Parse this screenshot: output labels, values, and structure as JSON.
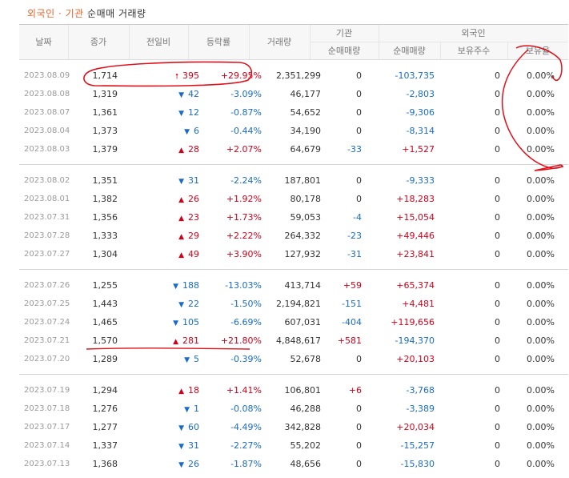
{
  "title": {
    "part1": "외국인",
    "dot": "·",
    "part2": "기관",
    "part3": "순매매 거래량"
  },
  "columns": {
    "date": "날짜",
    "close": "종가",
    "change": "전일비",
    "rate": "등락률",
    "volume": "거래량",
    "institution_group": "기관",
    "institution_net": "순매매량",
    "foreign_group": "외국인",
    "foreign_net": "순매매량",
    "foreign_holdings": "보유주수",
    "foreign_ratio": "보유율"
  },
  "colors": {
    "up": "#d0021b",
    "down": "#1a6bc9",
    "accent": "#e8642c",
    "annotation": "#e0101a"
  },
  "icons": {
    "up": "up-triangle-icon",
    "down": "down-triangle-icon",
    "big_up": "up-arrow-icon"
  },
  "groups": [
    [
      {
        "date": "2023.08.09",
        "close": "1,714",
        "dir": "bigup",
        "change": "395",
        "rate": "+29.95%",
        "volume": "2,351,299",
        "inst": "0",
        "foreign": "-103,735",
        "holdings": "0",
        "ratio": "0.00%"
      },
      {
        "date": "2023.08.08",
        "close": "1,319",
        "dir": "down",
        "change": "42",
        "rate": "-3.09%",
        "volume": "46,177",
        "inst": "0",
        "foreign": "-2,803",
        "holdings": "0",
        "ratio": "0.00%"
      },
      {
        "date": "2023.08.07",
        "close": "1,361",
        "dir": "down",
        "change": "12",
        "rate": "-0.87%",
        "volume": "54,652",
        "inst": "0",
        "foreign": "-9,306",
        "holdings": "0",
        "ratio": "0.00%"
      },
      {
        "date": "2023.08.04",
        "close": "1,373",
        "dir": "down",
        "change": "6",
        "rate": "-0.44%",
        "volume": "34,190",
        "inst": "0",
        "foreign": "-8,314",
        "holdings": "0",
        "ratio": "0.00%"
      },
      {
        "date": "2023.08.03",
        "close": "1,379",
        "dir": "up",
        "change": "28",
        "rate": "+2.07%",
        "volume": "64,679",
        "inst": "-33",
        "foreign": "+1,527",
        "holdings": "0",
        "ratio": "0.00%"
      }
    ],
    [
      {
        "date": "2023.08.02",
        "close": "1,351",
        "dir": "down",
        "change": "31",
        "rate": "-2.24%",
        "volume": "187,801",
        "inst": "0",
        "foreign": "-9,333",
        "holdings": "0",
        "ratio": "0.00%"
      },
      {
        "date": "2023.08.01",
        "close": "1,382",
        "dir": "up",
        "change": "26",
        "rate": "+1.92%",
        "volume": "80,178",
        "inst": "0",
        "foreign": "+18,283",
        "holdings": "0",
        "ratio": "0.00%"
      },
      {
        "date": "2023.07.31",
        "close": "1,356",
        "dir": "up",
        "change": "23",
        "rate": "+1.73%",
        "volume": "59,053",
        "inst": "-4",
        "foreign": "+15,054",
        "holdings": "0",
        "ratio": "0.00%"
      },
      {
        "date": "2023.07.28",
        "close": "1,333",
        "dir": "up",
        "change": "29",
        "rate": "+2.22%",
        "volume": "264,332",
        "inst": "-23",
        "foreign": "+49,446",
        "holdings": "0",
        "ratio": "0.00%"
      },
      {
        "date": "2023.07.27",
        "close": "1,304",
        "dir": "up",
        "change": "49",
        "rate": "+3.90%",
        "volume": "127,932",
        "inst": "-31",
        "foreign": "+23,841",
        "holdings": "0",
        "ratio": "0.00%"
      }
    ],
    [
      {
        "date": "2023.07.26",
        "close": "1,255",
        "dir": "down",
        "change": "188",
        "rate": "-13.03%",
        "volume": "413,714",
        "inst": "+59",
        "foreign": "+65,374",
        "holdings": "0",
        "ratio": "0.00%"
      },
      {
        "date": "2023.07.25",
        "close": "1,443",
        "dir": "down",
        "change": "22",
        "rate": "-1.50%",
        "volume": "2,194,821",
        "inst": "-151",
        "foreign": "+4,481",
        "holdings": "0",
        "ratio": "0.00%"
      },
      {
        "date": "2023.07.24",
        "close": "1,465",
        "dir": "down",
        "change": "105",
        "rate": "-6.69%",
        "volume": "607,031",
        "inst": "-404",
        "foreign": "+119,656",
        "holdings": "0",
        "ratio": "0.00%"
      },
      {
        "date": "2023.07.21",
        "close": "1,570",
        "dir": "up",
        "change": "281",
        "rate": "+21.80%",
        "volume": "4,848,617",
        "inst": "+581",
        "foreign": "-194,370",
        "holdings": "0",
        "ratio": "0.00%"
      },
      {
        "date": "2023.07.20",
        "close": "1,289",
        "dir": "down",
        "change": "5",
        "rate": "-0.39%",
        "volume": "52,678",
        "inst": "0",
        "foreign": "+20,103",
        "holdings": "0",
        "ratio": "0.00%"
      }
    ],
    [
      {
        "date": "2023.07.19",
        "close": "1,294",
        "dir": "up",
        "change": "18",
        "rate": "+1.41%",
        "volume": "106,801",
        "inst": "+6",
        "foreign": "-3,768",
        "holdings": "0",
        "ratio": "0.00%"
      },
      {
        "date": "2023.07.18",
        "close": "1,276",
        "dir": "down",
        "change": "1",
        "rate": "-0.08%",
        "volume": "46,288",
        "inst": "0",
        "foreign": "-3,389",
        "holdings": "0",
        "ratio": "0.00%"
      },
      {
        "date": "2023.07.17",
        "close": "1,277",
        "dir": "down",
        "change": "60",
        "rate": "-4.49%",
        "volume": "342,828",
        "inst": "0",
        "foreign": "+20,034",
        "holdings": "0",
        "ratio": "0.00%"
      },
      {
        "date": "2023.07.14",
        "close": "1,337",
        "dir": "down",
        "change": "31",
        "rate": "-2.27%",
        "volume": "55,202",
        "inst": "0",
        "foreign": "-15,257",
        "holdings": "0",
        "ratio": "0.00%"
      },
      {
        "date": "2023.07.13",
        "close": "1,368",
        "dir": "down",
        "change": "26",
        "rate": "-1.87%",
        "volume": "48,656",
        "inst": "0",
        "foreign": "-15,830",
        "holdings": "0",
        "ratio": "0.00%"
      }
    ]
  ]
}
